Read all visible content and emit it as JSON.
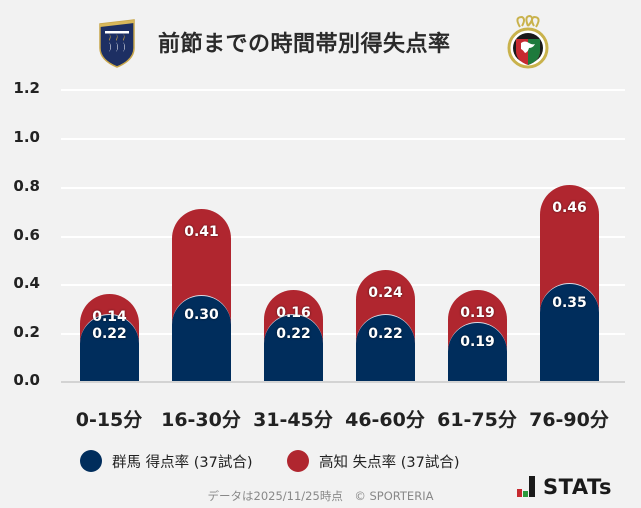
{
  "header": {
    "title": "前節までの時間帯別得失点率",
    "left_logo": "gunma-crest",
    "right_logo": "kochi-crest"
  },
  "colors": {
    "gunma": "#002d5c",
    "kochi": "#b0262f",
    "background": "#f2f2f2"
  },
  "chart_data": {
    "type": "bar",
    "stacked": true,
    "title": "前節までの時間帯別得失点率",
    "categories": [
      "0-15分",
      "16-30分",
      "31-45分",
      "46-60分",
      "61-75分",
      "76-90分"
    ],
    "series": [
      {
        "name": "群馬 得点率 (37試合)",
        "color": "#002d5c",
        "values": [
          0.22,
          0.3,
          0.22,
          0.22,
          0.19,
          0.35
        ]
      },
      {
        "name": "高知 失点率 (37試合)",
        "color": "#b0262f",
        "values": [
          0.14,
          0.41,
          0.16,
          0.24,
          0.19,
          0.46
        ]
      }
    ],
    "yticks": [
      "0.0",
      "0.2",
      "0.4",
      "0.6",
      "0.8",
      "1.0",
      "1.2"
    ],
    "ylim": [
      0,
      1.2
    ],
    "xlabel": "",
    "ylabel": "",
    "grid": true,
    "legend_position": "bottom"
  },
  "legend": [
    {
      "label": "群馬 得点率 (37試合)"
    },
    {
      "label": "高知 失点率 (37試合)"
    }
  ],
  "footer": {
    "note": "データは2025/11/25時点　© SPORTERIA",
    "brand": "STATs"
  }
}
